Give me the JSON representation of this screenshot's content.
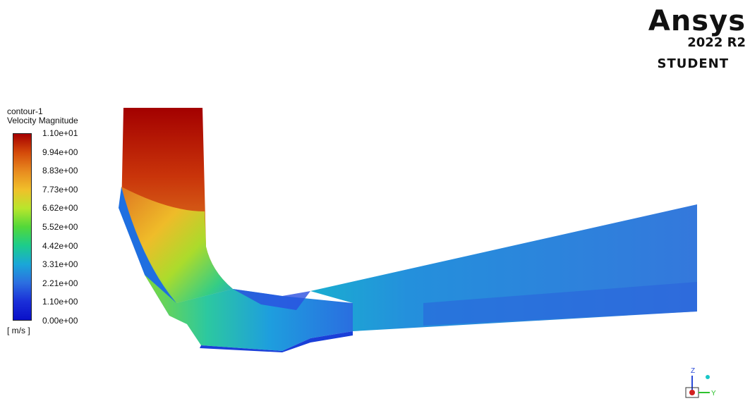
{
  "branding": {
    "name": "Ansys",
    "version": "2022 R2",
    "edition": "STUDENT"
  },
  "legend": {
    "title": "contour-1",
    "quantity": "Velocity Magnitude",
    "units": "[ m/s ]",
    "ticks": [
      "1.10e+01",
      "9.94e+00",
      "8.83e+00",
      "7.73e+00",
      "6.62e+00",
      "5.52e+00",
      "4.42e+00",
      "3.31e+00",
      "2.21e+00",
      "1.10e+00",
      "0.00e+00"
    ],
    "colors": [
      "#a50000",
      "#d44a0a",
      "#e88a1f",
      "#f0c02a",
      "#b8e62c",
      "#52d83a",
      "#1ccc8c",
      "#1aa7d8",
      "#2c6fe0",
      "#1a2fd8",
      "#0a10c8"
    ]
  },
  "axes_triad": {
    "z_label": "Z",
    "y_label": "Y"
  }
}
